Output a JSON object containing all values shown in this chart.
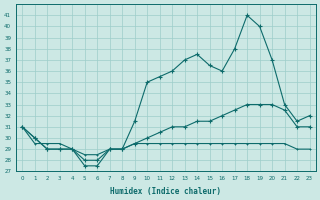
{
  "xlabel": "Humidex (Indice chaleur)",
  "x": [
    0,
    1,
    2,
    3,
    4,
    5,
    6,
    7,
    8,
    9,
    10,
    11,
    12,
    13,
    14,
    15,
    16,
    17,
    18,
    19,
    20,
    21,
    22,
    23
  ],
  "line1": [
    31,
    30,
    29,
    29,
    29,
    27.5,
    27.5,
    29,
    29,
    31.5,
    35,
    35.5,
    36,
    37,
    37.5,
    36.5,
    36,
    38,
    41,
    40,
    37,
    33,
    31.5,
    32
  ],
  "line2": [
    31,
    30,
    29,
    29,
    29,
    28,
    28,
    29,
    29,
    29.5,
    30,
    30.5,
    31,
    31,
    31.5,
    31.5,
    32,
    32.5,
    33,
    33,
    33,
    32.5,
    31,
    31
  ],
  "line3": [
    31,
    29.5,
    29.5,
    29.5,
    29,
    28.5,
    28.5,
    29,
    29,
    29.5,
    29.5,
    29.5,
    29.5,
    29.5,
    29.5,
    29.5,
    29.5,
    29.5,
    29.5,
    29.5,
    29.5,
    29.5,
    29,
    29
  ],
  "ylim": [
    27,
    42
  ],
  "xlim": [
    -0.5,
    23.5
  ],
  "yticks": [
    27,
    28,
    29,
    30,
    31,
    32,
    33,
    34,
    35,
    36,
    37,
    38,
    39,
    40,
    41
  ],
  "xticks": [
    0,
    1,
    2,
    3,
    4,
    5,
    6,
    7,
    8,
    9,
    10,
    11,
    12,
    13,
    14,
    15,
    16,
    17,
    18,
    19,
    20,
    21,
    22,
    23
  ],
  "bg_color": "#cce8e4",
  "grid_color": "#9ececa",
  "line_color": "#0d6b6b",
  "fig_bg": "#cce8e4"
}
